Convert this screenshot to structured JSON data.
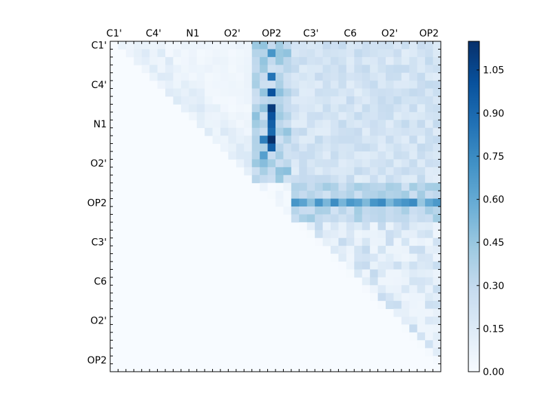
{
  "chart_data": {
    "type": "heatmap",
    "title": "",
    "xlabel": "",
    "ylabel": "",
    "matrix_size": 42,
    "x_tick_labels": [
      "C1'",
      "C4'",
      "N1",
      "O2'",
      "OP2",
      "C3'",
      "C6",
      "O2'",
      "OP2"
    ],
    "y_tick_labels": [
      "C1'",
      "C4'",
      "N1",
      "O2'",
      "OP2",
      "C3'",
      "C6",
      "O2'",
      "OP2"
    ],
    "colormap": "Blues",
    "color_range": [
      0.0,
      1.15
    ],
    "colorbar_ticks": [
      "0.00",
      "0.15",
      "0.30",
      "0.45",
      "0.60",
      "0.75",
      "0.90",
      "1.05"
    ],
    "colorbar_values": [
      0.0,
      0.15,
      0.3,
      0.45,
      0.6,
      0.75,
      0.9,
      1.05
    ],
    "upper_triangle_only": true,
    "regions": {
      "block_1_rows": [
        0,
        18
      ],
      "block_2_rows": [
        18,
        23
      ],
      "block_3_rows": [
        23,
        42
      ],
      "block_boundaries_cols": [
        18,
        23
      ]
    },
    "hot_cells": [
      {
        "row": 1,
        "col": 20,
        "value": 0.7
      },
      {
        "row": 4,
        "col": 20,
        "value": 0.85
      },
      {
        "row": 6,
        "col": 20,
        "value": 1.0
      },
      {
        "row": 8,
        "col": 20,
        "value": 1.1
      },
      {
        "row": 9,
        "col": 20,
        "value": 1.0
      },
      {
        "row": 10,
        "col": 20,
        "value": 0.95
      },
      {
        "row": 11,
        "col": 20,
        "value": 0.9
      },
      {
        "row": 12,
        "col": 20,
        "value": 1.15
      },
      {
        "row": 12,
        "col": 19,
        "value": 0.8
      },
      {
        "row": 13,
        "col": 20,
        "value": 0.95
      },
      {
        "row": 14,
        "col": 19,
        "value": 0.65
      },
      {
        "row": 20,
        "col": 23,
        "value": 0.7
      },
      {
        "row": 20,
        "col": 26,
        "value": 0.7
      },
      {
        "row": 20,
        "col": 33,
        "value": 0.7
      },
      {
        "row": 20,
        "col": 34,
        "value": 0.75
      },
      {
        "row": 20,
        "col": 38,
        "value": 0.75
      }
    ]
  }
}
